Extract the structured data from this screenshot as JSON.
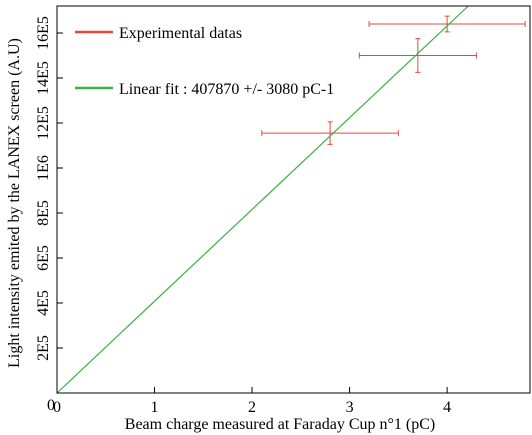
{
  "chart_data": {
    "type": "scatter",
    "title": "",
    "xlabel": "Beam charge measured at Faraday Cup n°1 (pC)",
    "ylabel": "Light intensity emited by the LANEX screen (A.U)",
    "xlim": [
      0,
      4.85
    ],
    "ylim": [
      0,
      1720000
    ],
    "x_ticks": [
      0,
      1,
      2,
      3,
      4
    ],
    "x_tick_labels": [
      "0",
      "1",
      "2",
      "3",
      "4"
    ],
    "y_ticks": [
      200000,
      400000,
      600000,
      800000,
      1000000,
      1200000,
      1400000,
      1600000
    ],
    "y_tick_labels": [
      "2E5",
      "4E5",
      "6E5",
      "8E5",
      "1E6",
      "12E5",
      "14E5",
      "16E5"
    ],
    "grid": false,
    "legend_position": "top-left",
    "series": [
      {
        "name": "Experimental datas",
        "kind": "errorbar",
        "color": "#e8473f",
        "points": [
          {
            "x": 2.8,
            "y": 1155000,
            "xerr": 0.7,
            "yerr": 50000
          },
          {
            "x": 3.7,
            "y": 1500000,
            "xerr": 0.6,
            "yerr": 75000
          },
          {
            "x": 4.0,
            "y": 1640000,
            "xerr": 0.8,
            "yerr": 35000
          }
        ]
      },
      {
        "name": "Linear fit : 407870 +/- 3080 pC-1",
        "kind": "line",
        "color": "#3cb043",
        "slope": 407870,
        "intercept": 0
      }
    ]
  }
}
